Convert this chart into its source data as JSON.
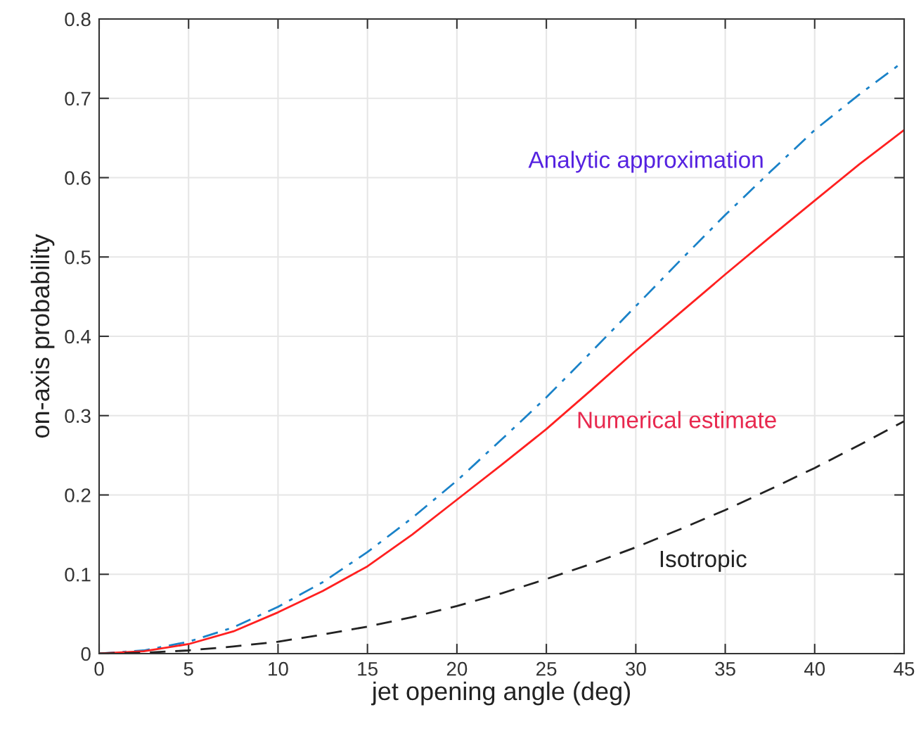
{
  "chart_data": {
    "type": "line",
    "xlabel": "jet opening angle (deg)",
    "ylabel": "on-axis probability",
    "x": [
      0,
      2.5,
      5,
      7.5,
      10,
      12.5,
      15,
      17.5,
      20,
      22.5,
      25,
      27.5,
      30,
      32.5,
      35,
      37.5,
      40,
      42.5,
      45
    ],
    "series": [
      {
        "name": "Analytic approximation",
        "color": "#1a82c8",
        "line_style": "dashdot",
        "values": [
          0,
          0.004,
          0.015,
          0.033,
          0.059,
          0.09,
          0.128,
          0.171,
          0.218,
          0.27,
          0.323,
          0.38,
          0.438,
          0.496,
          0.553,
          0.607,
          0.66,
          0.705,
          0.747
        ]
      },
      {
        "name": "Numerical estimate",
        "color": "#ff2020",
        "line_style": "solid",
        "values": [
          0,
          0.003,
          0.012,
          0.028,
          0.052,
          0.079,
          0.11,
          0.15,
          0.194,
          0.238,
          0.283,
          0.332,
          0.382,
          0.43,
          0.478,
          0.525,
          0.571,
          0.617,
          0.66
        ]
      },
      {
        "name": "Isotropic",
        "color": "#222222",
        "line_style": "dashed",
        "values": [
          0,
          0.001,
          0.004,
          0.009,
          0.015,
          0.024,
          0.034,
          0.046,
          0.06,
          0.076,
          0.094,
          0.113,
          0.134,
          0.157,
          0.181,
          0.207,
          0.234,
          0.263,
          0.293
        ]
      }
    ],
    "xlim": [
      0,
      45
    ],
    "xticks": [
      0,
      5,
      10,
      15,
      20,
      25,
      30,
      35,
      40,
      45
    ],
    "ylim": [
      0,
      0.8
    ],
    "yticks": [
      0,
      0.1,
      0.2,
      0.3,
      0.4,
      0.5,
      0.6,
      0.7,
      0.8
    ],
    "grid": true,
    "legend": false
  }
}
